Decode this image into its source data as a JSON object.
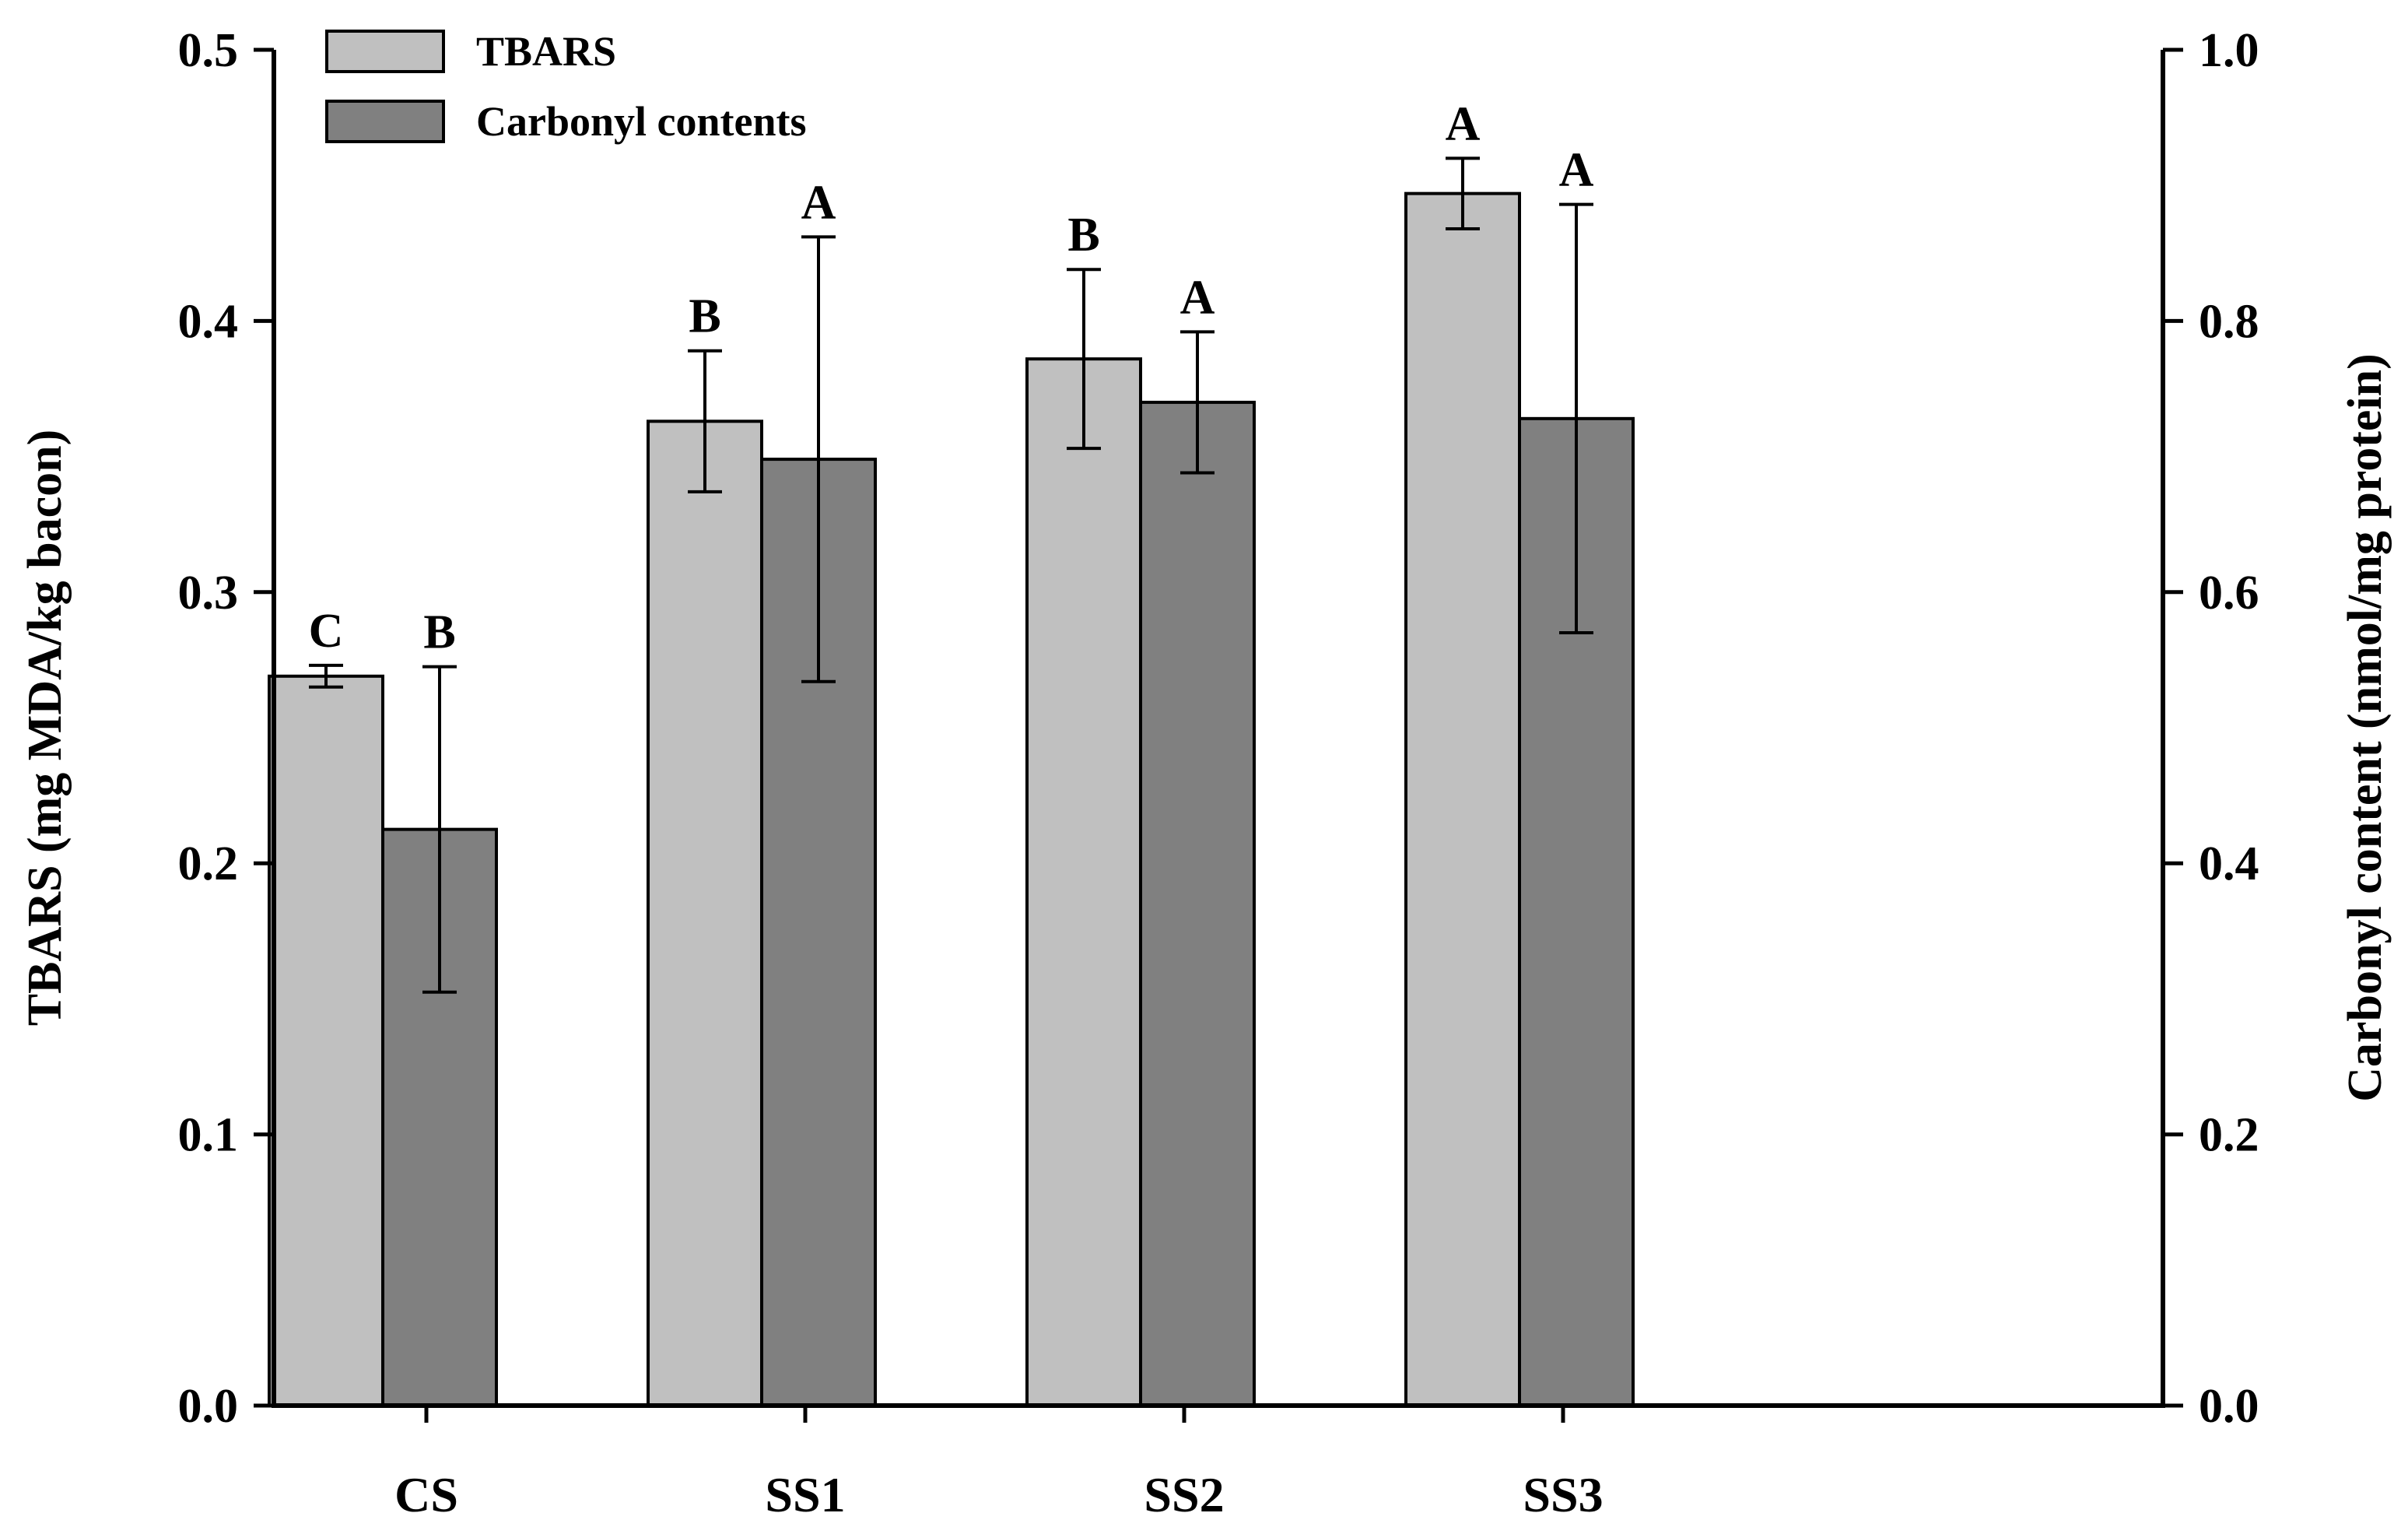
{
  "chart_data": {
    "type": "bar",
    "categories": [
      "CS",
      "SS1",
      "SS2",
      "SS3"
    ],
    "y_left": {
      "label": "TBARS (mg MDA/kg bacon)",
      "range": [
        0.0,
        0.5
      ],
      "ticks": [
        "0.0",
        "0.1",
        "0.2",
        "0.3",
        "0.4",
        "0.5"
      ]
    },
    "y_right": {
      "label": "Carbonyl content (nmol/mg protein)",
      "range": [
        0.0,
        1.0
      ],
      "ticks": [
        "0.0",
        "0.2",
        "0.4",
        "0.6",
        "0.8",
        "1.0"
      ]
    },
    "legend": {
      "position": "top-left"
    },
    "grid": false,
    "series": [
      {
        "name": "TBARS",
        "axis": "left",
        "color": "#c0c0c0",
        "values": [
          0.269,
          0.363,
          0.386,
          0.447
        ],
        "errors": [
          0.004,
          0.026,
          0.033,
          0.013
        ],
        "letters": [
          "C",
          "B",
          "B",
          "A"
        ]
      },
      {
        "name": "Carbonyl contents",
        "axis": "right",
        "color": "#808080",
        "values": [
          0.425,
          0.698,
          0.74,
          0.728
        ],
        "errors": [
          0.12,
          0.164,
          0.052,
          0.158
        ],
        "letters": [
          "B",
          "A",
          "A",
          "A"
        ]
      }
    ]
  }
}
